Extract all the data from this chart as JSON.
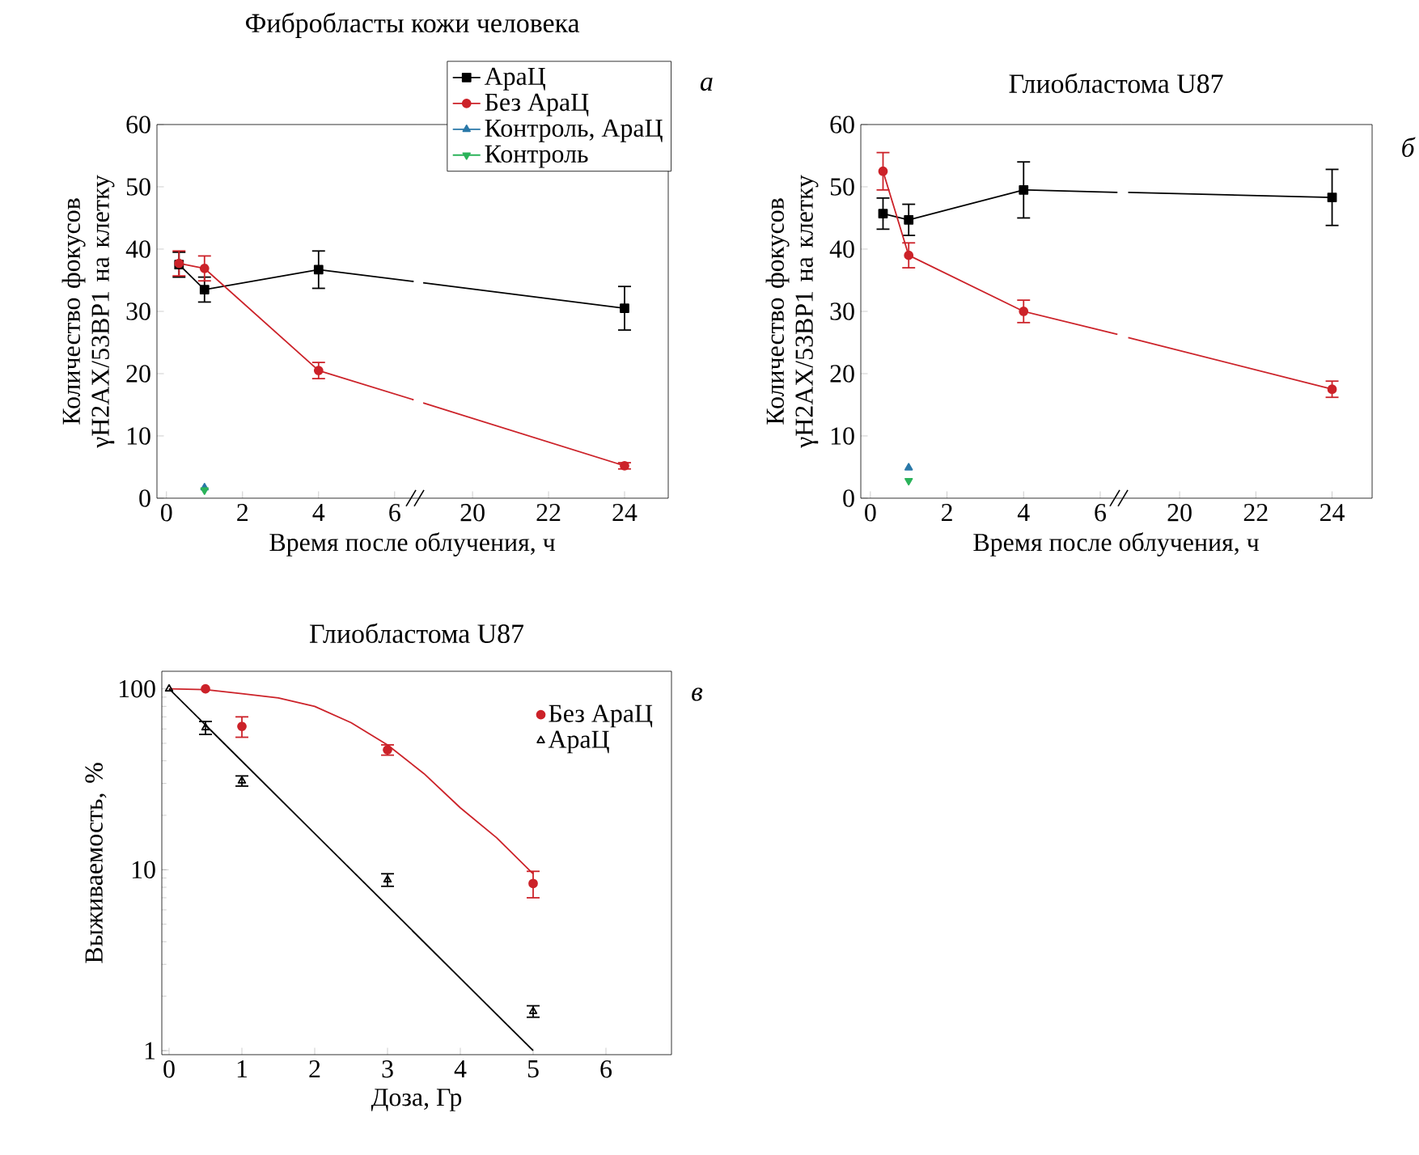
{
  "chart_data": [
    {
      "type": "line",
      "title": "Фибробласты кожи человека",
      "xlabel": "Время после облучения, ч",
      "ylabel": "Количество фокусов γH2AX/53BP1 на клетку",
      "annotations": [
        "а"
      ],
      "xlim": [
        -0.25,
        6.6
      ],
      "xticks": [
        0,
        2,
        4,
        6
      ],
      "ylim": [
        0,
        60
      ],
      "yticks": [
        0,
        10,
        20,
        30,
        40,
        50,
        60
      ],
      "legend": "top right",
      "line_style": "solid",
      "series": [
        {
          "name": "АраЦ",
          "color": "#000000",
          "marker": "square",
          "x": [
            0.33,
            1,
            4,
            6.5
          ],
          "values": [
            37.5,
            33.5,
            36.7,
            34.8
          ],
          "errors": [
            2,
            2,
            3,
            null
          ]
        },
        {
          "name": "Без АраЦ",
          "color": "#cc2229",
          "marker": "circle",
          "x": [
            0.33,
            1,
            4,
            6.5
          ],
          "values": [
            37.7,
            36.9,
            20.5,
            15.8
          ],
          "errors": [
            2,
            2,
            1.3,
            null
          ]
        },
        {
          "name": "Контроль, АраЦ",
          "color": "#2a78a8",
          "marker": "triangle",
          "x": [
            1
          ],
          "values": [
            1.7
          ]
        },
        {
          "name": "Контроль",
          "color": "#2bb35a",
          "marker": "triangle-down",
          "x": [
            1
          ],
          "values": [
            1.3
          ]
        }
      ]
    },
    {
      "type": "line",
      "xlim": [
        18.55,
        25.15
      ],
      "xticks": [
        20,
        22,
        24
      ],
      "ylim": [
        0,
        60
      ],
      "tick_labels": "x",
      "line_style": "solid",
      "series": [
        {
          "color": "#000000",
          "marker": "square",
          "x": [
            18.7,
            24
          ],
          "values": [
            34.6,
            30.5
          ],
          "errors": [
            null,
            3.5
          ]
        },
        {
          "color": "#cc2229",
          "marker": "circle",
          "x": [
            18.7,
            24
          ],
          "values": [
            15.3,
            5.2
          ],
          "errors": [
            null,
            0.5
          ]
        }
      ]
    },
    {
      "type": "line",
      "title": "Глиобластома U87",
      "xlabel": "Время после облучения, ч",
      "ylabel": "Количество фокусов γH2AX/53BP1 на клетку",
      "annotations": [
        "б"
      ],
      "xlim": [
        -0.25,
        6.55
      ],
      "xticks": [
        0,
        2,
        4,
        6
      ],
      "ylim": [
        0,
        60
      ],
      "yticks": [
        0,
        10,
        20,
        30,
        40,
        50,
        60
      ],
      "line_style": "solid",
      "series": [
        {
          "color": "#000000",
          "marker": "square",
          "x": [
            0.33,
            1,
            4,
            6.45
          ],
          "values": [
            45.7,
            44.7,
            49.5,
            49.1
          ],
          "errors": [
            2.5,
            2.5,
            4.5,
            null
          ]
        },
        {
          "color": "#cc2229",
          "marker": "circle",
          "x": [
            0.33,
            1,
            4,
            6.45
          ],
          "values": [
            52.5,
            39,
            30,
            26.3
          ],
          "errors": [
            3,
            2,
            1.8,
            null
          ]
        },
        {
          "color": "#2a78a8",
          "marker": "triangle",
          "x": [
            1
          ],
          "values": [
            4.9
          ]
        },
        {
          "color": "#2bb35a",
          "marker": "triangle-down",
          "x": [
            1
          ],
          "values": [
            2.8
          ]
        }
      ]
    },
    {
      "type": "line",
      "xlim": [
        18.47,
        25.05
      ],
      "xticks": [
        20,
        22,
        24
      ],
      "ylim": [
        0,
        60
      ],
      "tick_labels": "x",
      "line_style": "solid",
      "series": [
        {
          "color": "#000000",
          "marker": "square",
          "x": [
            18.65,
            24
          ],
          "values": [
            49.1,
            48.3
          ],
          "errors": [
            null,
            4.5
          ]
        },
        {
          "color": "#cc2229",
          "marker": "circle",
          "x": [
            18.65,
            24
          ],
          "values": [
            25.8,
            17.5
          ],
          "errors": [
            null,
            1.3
          ]
        }
      ]
    },
    {
      "type": "scatter",
      "title": "Глиобластома U87",
      "xlabel": "Доза, Гр",
      "ylabel": "Выживаемость, %",
      "annotations": [
        "в"
      ],
      "log": "y",
      "xlim": [
        -0.1,
        6.9
      ],
      "xticks": [
        0,
        1,
        2,
        3,
        4,
        5,
        6
      ],
      "ylim": [
        0.95,
        125
      ],
      "yticks": [
        1,
        10,
        100
      ],
      "legend": "top right",
      "series": [
        {
          "name": "Без АраЦ",
          "color": "#cc2229",
          "marker": "circle",
          "x": [
            0.5,
            1,
            3,
            5
          ],
          "values": [
            100,
            62,
            46,
            8.4
          ],
          "errors": [
            null,
            8,
            3,
            [
              7.0,
              9.8
            ]
          ]
        },
        {
          "name": "АраЦ",
          "color": "#000000",
          "marker": "triangle",
          "x": [
            0,
            0.5,
            1,
            3,
            5
          ],
          "values": [
            100,
            61,
            31,
            8.8,
            1.65
          ],
          "errors": [
            null,
            5,
            2,
            0.7,
            0.12
          ]
        },
        {
          "type": "line",
          "color": "#cc2229",
          "marker": "none",
          "x": [
            0,
            0.5,
            1,
            1.5,
            2,
            2.5,
            3,
            3.5,
            4,
            4.5,
            5
          ],
          "values": [
            100,
            99,
            94,
            89,
            80,
            65,
            49,
            34,
            22,
            15,
            9.5
          ]
        },
        {
          "type": "line",
          "color": "#000000",
          "marker": "none",
          "x": [
            0,
            5
          ],
          "values": [
            100,
            1
          ]
        }
      ]
    }
  ]
}
